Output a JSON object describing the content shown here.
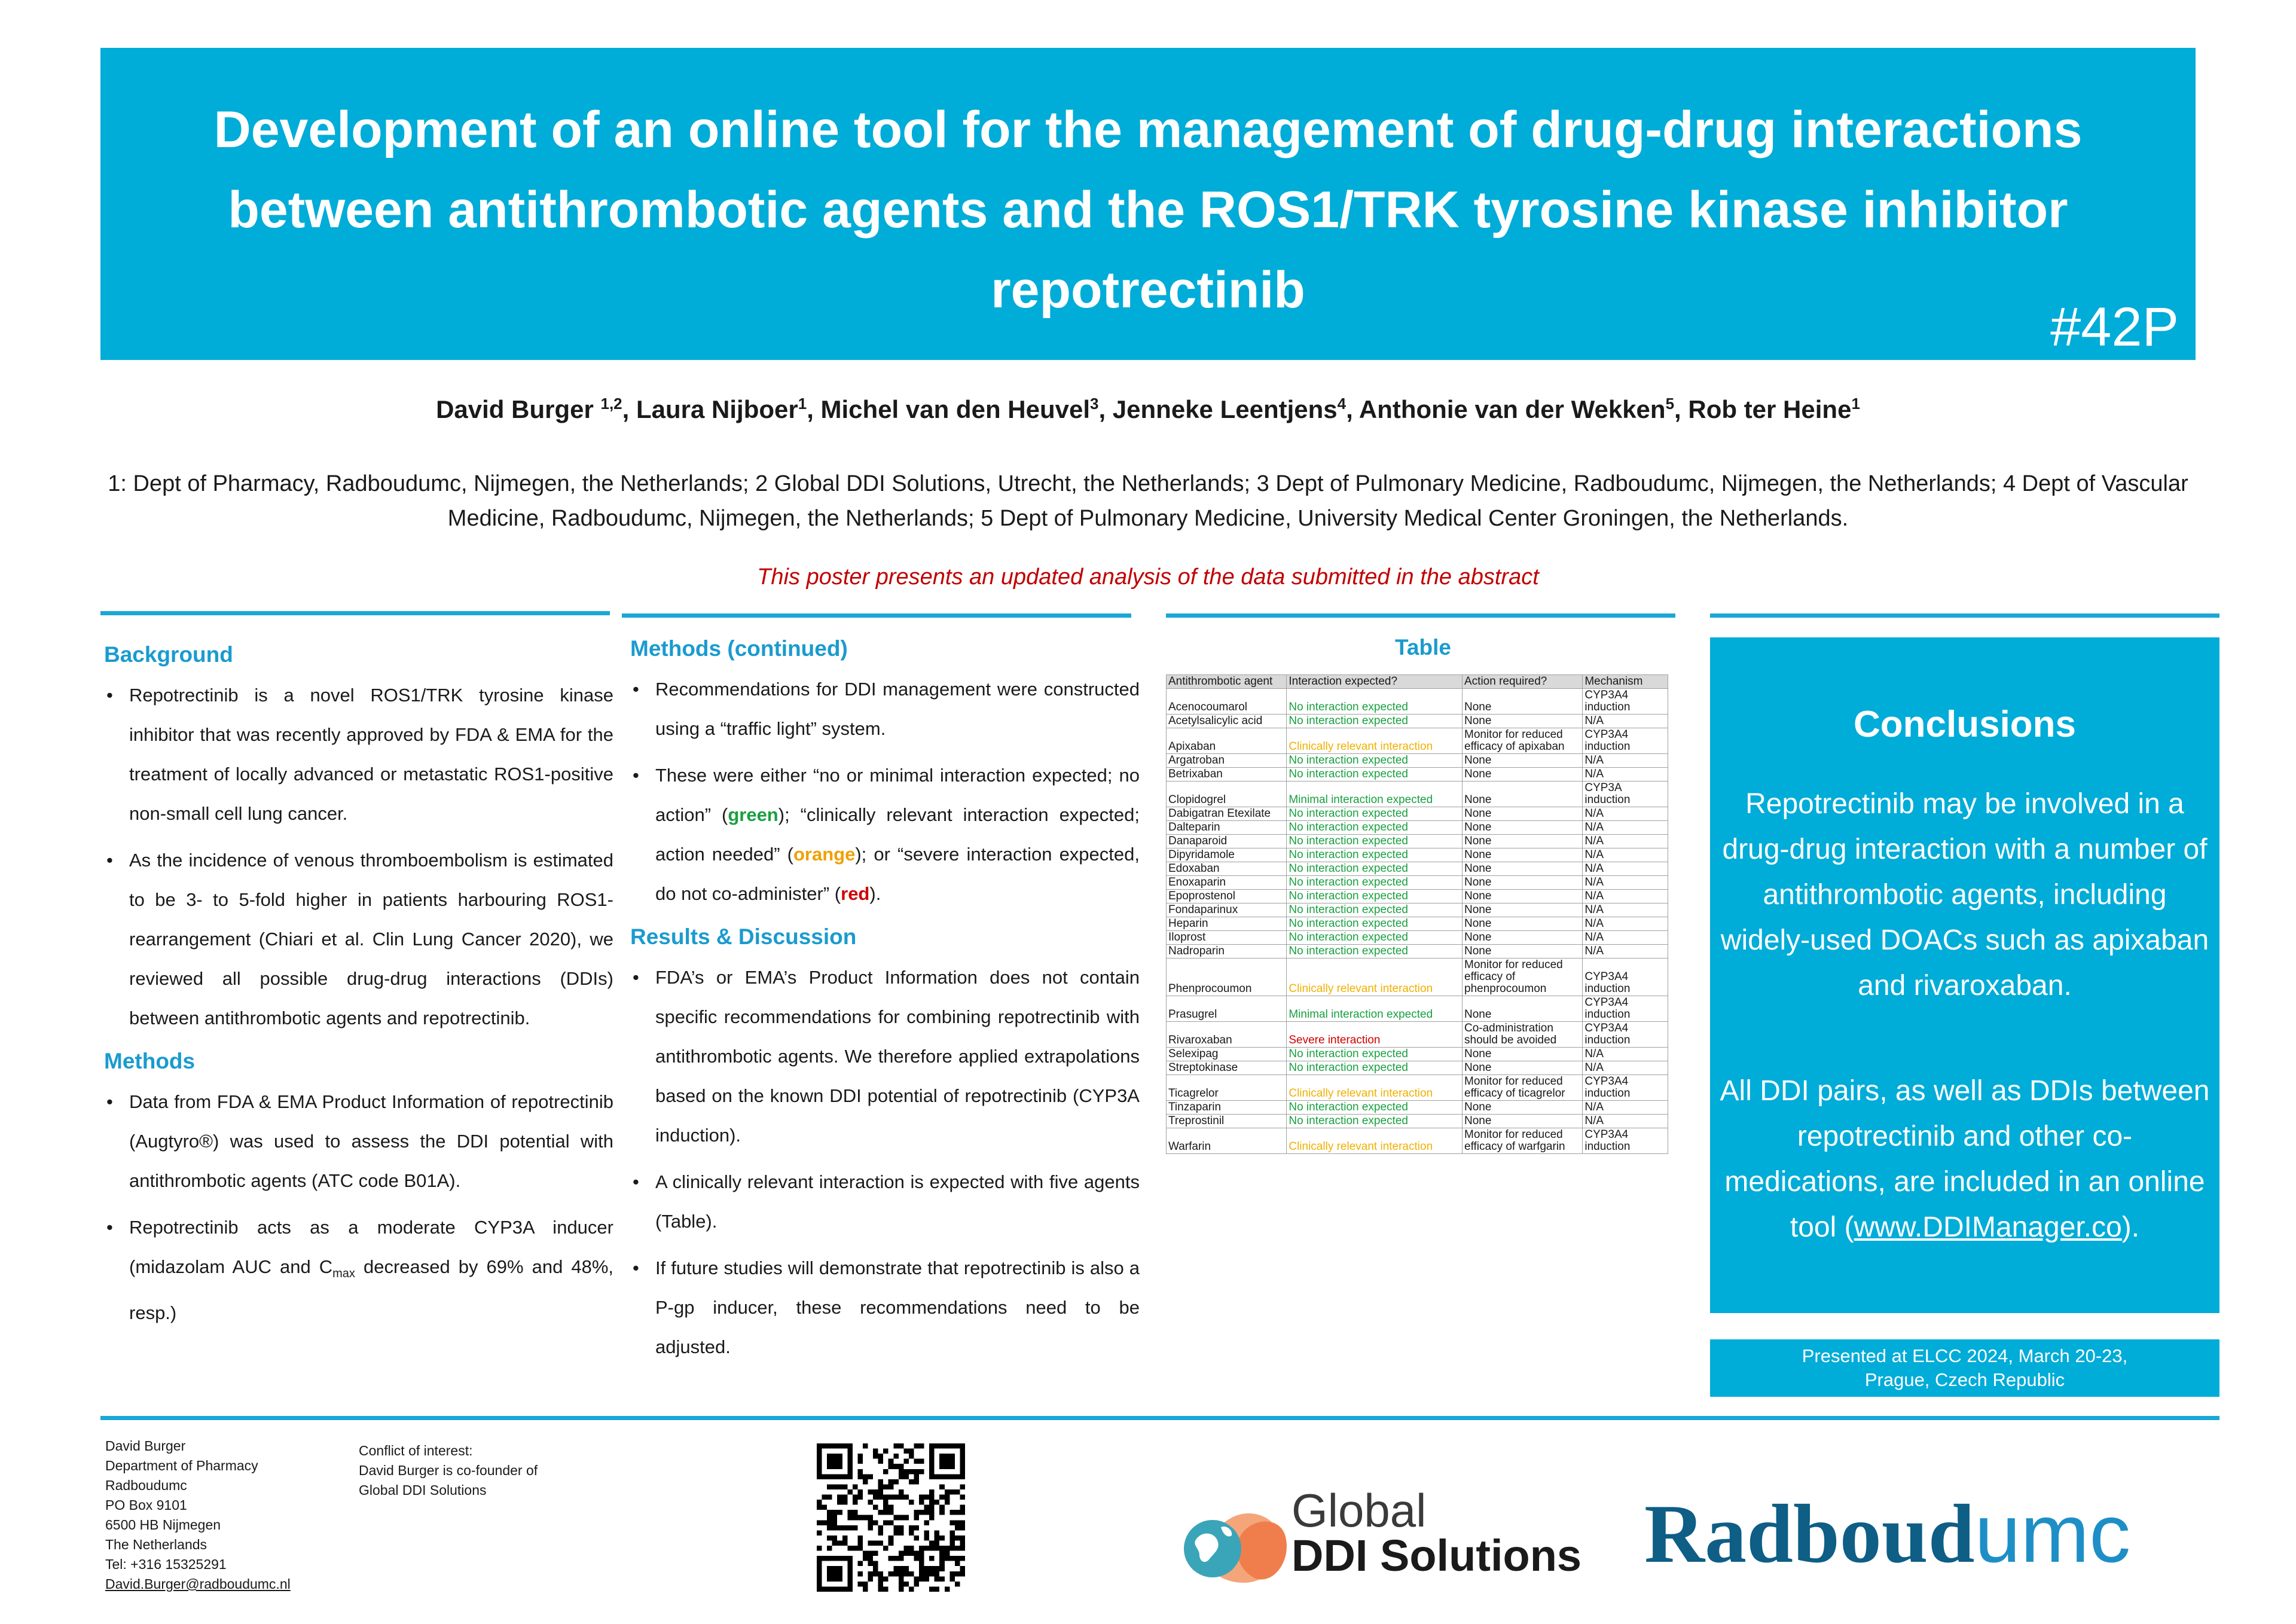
{
  "header": {
    "title": "Development of an online tool for the management of drug-drug interactions between antithrombotic agents and the ROS1/TRK tyrosine kinase inhibitor repotrectinib",
    "poster_id": "#42P"
  },
  "authors": {
    "a1": "David Burger ",
    "a1_sup": "1,2",
    "a2": ", Laura Nijboer",
    "a2_sup": "1",
    "a3": ", Michel van den Heuvel",
    "a3_sup": "3",
    "a4": ", Jenneke Leentjens",
    "a4_sup": "4",
    "a5": ", Anthonie van der Wekken",
    "a5_sup": "5",
    "a6": ", Rob ter Heine",
    "a6_sup": "1"
  },
  "affiliations": "1: Dept of Pharmacy, Radboudumc, Nijmegen, the Netherlands; 2 Global DDI Solutions, Utrecht, the Netherlands; 3 Dept of Pulmonary Medicine, Radboudumc, Nijmegen, the Netherlands; 4 Dept of Vascular Medicine, Radboudumc, Nijmegen, the Netherlands; 5 Dept of  Pulmonary Medicine, University Medical Center Groningen, the Netherlands.",
  "notice": "This poster presents an updated analysis of the data submitted in the abstract",
  "background": {
    "heading": "Background",
    "b1": "Repotrectinib is a novel ROS1/TRK tyrosine kinase inhibitor that was recently approved by FDA & EMA for the treatment of locally advanced or metastatic ROS1-positive non-small cell lung cancer.",
    "b2": "As the incidence of venous thromboembolism is estimated to be 3- to 5-fold higher in patients harbouring ROS1-rearrangement (Chiari et al. Clin Lung Cancer 2020), we reviewed all possible drug-drug interactions (DDIs) between antithrombotic agents and repotrectinib."
  },
  "methods": {
    "heading": "Methods",
    "m1": "Data from FDA & EMA Product Information of repotrectinib (Augtyro®) was used to assess the DDI potential with antithrombotic agents (ATC code B01A).",
    "m2_a": "Repotrectinib acts as a moderate CYP3A inducer (midazolam AUC and C",
    "m2_sub": "max",
    "m2_b": " decreased by 69% and 48%, resp.)"
  },
  "methods_cont": {
    "heading": "Methods (continued)",
    "c1": "Recommendations for DDI management were constructed using a “traffic light” system.",
    "c2_a": "These were either “no or minimal interaction expected; no action” (",
    "green": "green",
    "c2_b": "); “clinically relevant interaction expected; action needed” (",
    "orange": "orange",
    "c2_c": "); or “severe interaction expected, do not co-administer” (",
    "red": "red",
    "c2_d": ")."
  },
  "results": {
    "heading": "Results & Discussion",
    "r1": "FDA’s or EMA’s Product Information does not contain specific recommendations for combining repotrectinib with antithrombotic agents. We therefore applied extrapolations based on the known DDI potential of repotrectinib (CYP3A induction).",
    "r2": "A clinically relevant interaction is expected with five agents (Table).",
    "r3": "If future studies will demonstrate that repotrectinib is also a P-gp inducer, these recommendations need to be adjusted."
  },
  "table": {
    "title": "Table",
    "headers": [
      "Antithrombotic agent",
      "Interaction expected?",
      "Action required?",
      "Mechanism"
    ],
    "rows": [
      {
        "agent": "Acenocoumarol",
        "interaction": "No interaction expected",
        "level": "green",
        "action": "None",
        "mechanism": "CYP3A4 induction"
      },
      {
        "agent": "Acetylsalicylic acid",
        "interaction": "No interaction expected",
        "level": "green",
        "action": "None",
        "mechanism": "N/A"
      },
      {
        "agent": "Apixaban",
        "interaction": "Clinically relevant interaction",
        "level": "orange",
        "action": "Monitor for reduced efficacy of apixaban",
        "mechanism": "CYP3A4 induction"
      },
      {
        "agent": "Argatroban",
        "interaction": "No interaction expected",
        "level": "green",
        "action": "None",
        "mechanism": "N/A"
      },
      {
        "agent": "Betrixaban",
        "interaction": "No interaction expected",
        "level": "green",
        "action": "None",
        "mechanism": "N/A"
      },
      {
        "agent": "Clopidogrel",
        "interaction": "Minimal interaction expected",
        "level": "green",
        "action": "None",
        "mechanism": "CYP3A induction"
      },
      {
        "agent": "Dabigatran Etexilate",
        "interaction": "No interaction expected",
        "level": "green",
        "action": "None",
        "mechanism": "N/A"
      },
      {
        "agent": "Dalteparin",
        "interaction": "No interaction expected",
        "level": "green",
        "action": "None",
        "mechanism": "N/A"
      },
      {
        "agent": "Danaparoid",
        "interaction": "No interaction expected",
        "level": "green",
        "action": "None",
        "mechanism": "N/A"
      },
      {
        "agent": "Dipyridamole",
        "interaction": "No interaction expected",
        "level": "green",
        "action": "None",
        "mechanism": "N/A"
      },
      {
        "agent": "Edoxaban",
        "interaction": "No interaction expected",
        "level": "green",
        "action": "None",
        "mechanism": "N/A"
      },
      {
        "agent": "Enoxaparin",
        "interaction": "No interaction expected",
        "level": "green",
        "action": "None",
        "mechanism": "N/A"
      },
      {
        "agent": "Epoprostenol",
        "interaction": "No interaction expected",
        "level": "green",
        "action": "None",
        "mechanism": "N/A"
      },
      {
        "agent": "Fondaparinux",
        "interaction": "No interaction expected",
        "level": "green",
        "action": "None",
        "mechanism": "N/A"
      },
      {
        "agent": "Heparin",
        "interaction": "No interaction expected",
        "level": "green",
        "action": "None",
        "mechanism": "N/A"
      },
      {
        "agent": "Iloprost",
        "interaction": "No interaction expected",
        "level": "green",
        "action": "None",
        "mechanism": "N/A"
      },
      {
        "agent": "Nadroparin",
        "interaction": "No interaction expected",
        "level": "green",
        "action": "None",
        "mechanism": "N/A"
      },
      {
        "agent": "Phenprocoumon",
        "interaction": "Clinically relevant interaction",
        "level": "orange",
        "action": "Monitor for reduced efficacy of phenprocoumon",
        "mechanism": "CYP3A4 induction"
      },
      {
        "agent": "Prasugrel",
        "interaction": "Minimal interaction expected",
        "level": "green",
        "action": "None",
        "mechanism": "CYP3A4 induction"
      },
      {
        "agent": "Rivaroxaban",
        "interaction": "Severe interaction",
        "level": "red",
        "action": "Co-administration should be avoided",
        "mechanism": "CYP3A4 induction"
      },
      {
        "agent": "Selexipag",
        "interaction": "No interaction expected",
        "level": "green",
        "action": "None",
        "mechanism": "N/A"
      },
      {
        "agent": "Streptokinase",
        "interaction": "No interaction expected",
        "level": "green",
        "action": "None",
        "mechanism": "N/A"
      },
      {
        "agent": "Ticagrelor",
        "interaction": "Clinically relevant interaction",
        "level": "orange",
        "action": "Monitor for reduced efficacy of ticagrelor",
        "mechanism": "CYP3A4 induction"
      },
      {
        "agent": "Tinzaparin",
        "interaction": "No interaction expected",
        "level": "green",
        "action": "None",
        "mechanism": "N/A"
      },
      {
        "agent": "Treprostinil",
        "interaction": "No interaction expected",
        "level": "green",
        "action": "None",
        "mechanism": "N/A"
      },
      {
        "agent": "Warfarin",
        "interaction": "Clinically relevant interaction",
        "level": "orange",
        "action": "Monitor for reduced efficacy of warfgarin",
        "mechanism": "CYP3A4 induction"
      }
    ]
  },
  "conclusions": {
    "heading": "Conclusions",
    "p1": "Repotrectinib may be involved in a drug-drug interaction with a number of antithrombotic agents, including widely-used DOACs such as apixaban and rivaroxaban.",
    "p2_a": "All DDI pairs, as well as DDIs between repotrectinib and other co-medications, are included in an online tool (",
    "link": "www.DDIManager.co",
    "p2_b": ")."
  },
  "presented": {
    "line1": "Presented at ELCC 2024, March  20-23,",
    "line2": "Prague, Czech Republic"
  },
  "contact": {
    "name": "David Burger",
    "dept": "Department of Pharmacy",
    "org": "Radboudumc",
    "po": "PO Box 9101",
    "city": "6500 HB  Nijmegen",
    "country": "The Netherlands",
    "tel": "Tel: +316 15325291",
    "email": "David.Burger@radboudumc.nl"
  },
  "coi": {
    "line1": "Conflict of interest:",
    "line2": "David Burger is co-founder of",
    "line3": "Global DDI Solutions"
  },
  "logos": {
    "gds_line1": "Global",
    "gds_line2": "DDI Solutions",
    "radboud_main": "Radboud",
    "radboud_suffix": "umc"
  },
  "colors": {
    "accent": "#00acd8",
    "heading": "#1a9bcf",
    "notice": "#c00000",
    "green": "#18a040",
    "orange": "#f0a000",
    "red": "#d00000",
    "radboud": "#0e5e86"
  }
}
